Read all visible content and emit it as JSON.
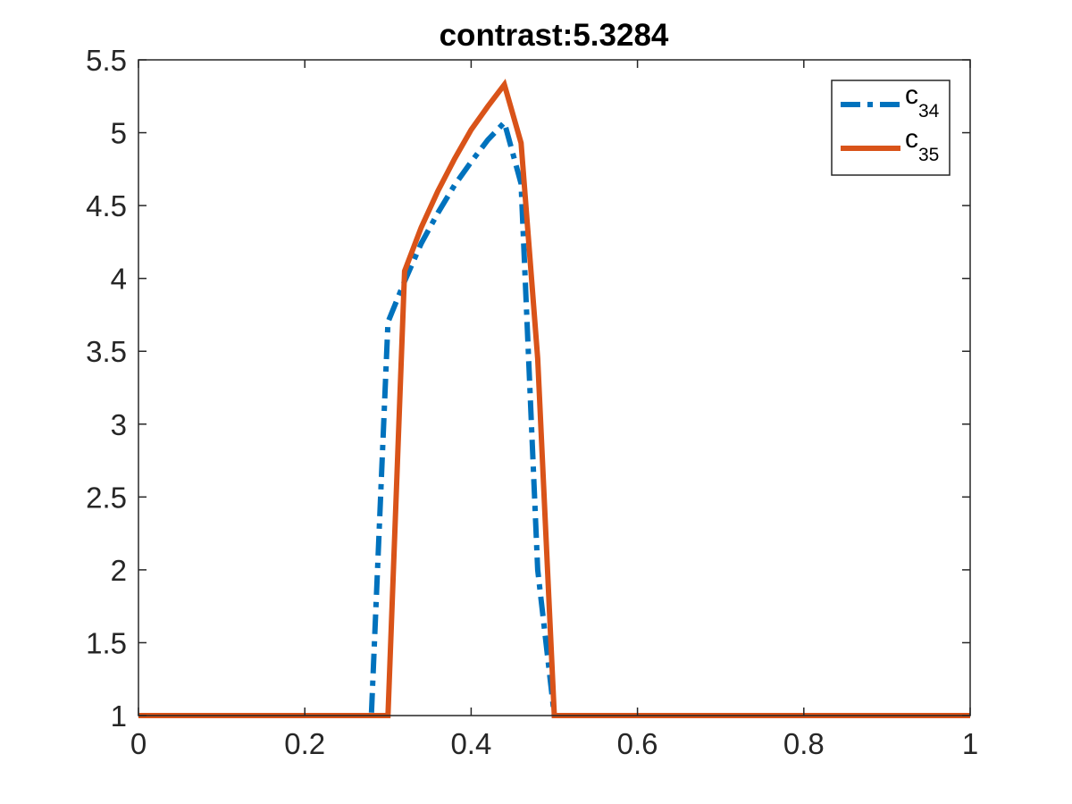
{
  "chart_data": {
    "type": "line",
    "title": "contrast:5.3284",
    "xlabel": "",
    "ylabel": "",
    "xlim": [
      0,
      1
    ],
    "ylim": [
      1,
      5.5
    ],
    "xticks": [
      0,
      0.2,
      0.4,
      0.6,
      0.8,
      1
    ],
    "xtick_labels": [
      "0",
      "0.2",
      "0.4",
      "0.6",
      "0.8",
      "1"
    ],
    "yticks": [
      1,
      1.5,
      2,
      2.5,
      3,
      3.5,
      4,
      4.5,
      5,
      5.5
    ],
    "ytick_labels": [
      "1",
      "1.5",
      "2",
      "2.5",
      "3",
      "3.5",
      "4",
      "4.5",
      "5",
      "5.5"
    ],
    "grid": false,
    "legend_position": "top-right",
    "series": [
      {
        "name": "c",
        "name_subscript": "34",
        "color": "#0072BD",
        "line_style": "dash-dot",
        "x": [
          0,
          0.28,
          0.3,
          0.32,
          0.34,
          0.36,
          0.38,
          0.4,
          0.42,
          0.44,
          0.46,
          0.48,
          0.5,
          1.0
        ],
        "y": [
          1,
          1,
          3.7,
          3.98,
          4.24,
          4.45,
          4.64,
          4.8,
          4.95,
          5.07,
          4.65,
          2.0,
          1,
          1
        ]
      },
      {
        "name": "c",
        "name_subscript": "35",
        "color": "#D95319",
        "line_style": "solid",
        "x": [
          0,
          0.3,
          0.32,
          0.34,
          0.36,
          0.38,
          0.4,
          0.42,
          0.44,
          0.46,
          0.48,
          0.5,
          1.0
        ],
        "y": [
          1,
          1,
          4.05,
          4.35,
          4.6,
          4.82,
          5.02,
          5.18,
          5.33,
          4.93,
          3.45,
          1,
          1
        ]
      }
    ]
  }
}
